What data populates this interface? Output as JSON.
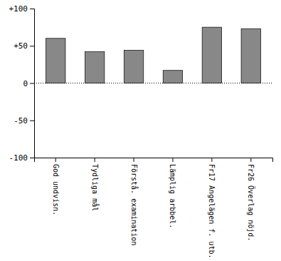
{
  "chart_data": {
    "type": "bar",
    "categories": [
      "God undvisn.",
      "Tydliga mål",
      "Förstå. examination",
      "Lämplig arbbel.",
      "Fr17 Angelägen f. utb.",
      "Fr26 Överlag nöjd."
    ],
    "values": [
      60,
      42,
      44,
      17,
      75,
      73
    ],
    "color": "#888888",
    "ylim": [
      -100,
      100
    ],
    "yticks": [
      -100,
      -50,
      0,
      {
        "value": 50,
        "label": "+50"
      },
      {
        "value": 100,
        "label": "+100"
      }
    ],
    "grid": false
  }
}
